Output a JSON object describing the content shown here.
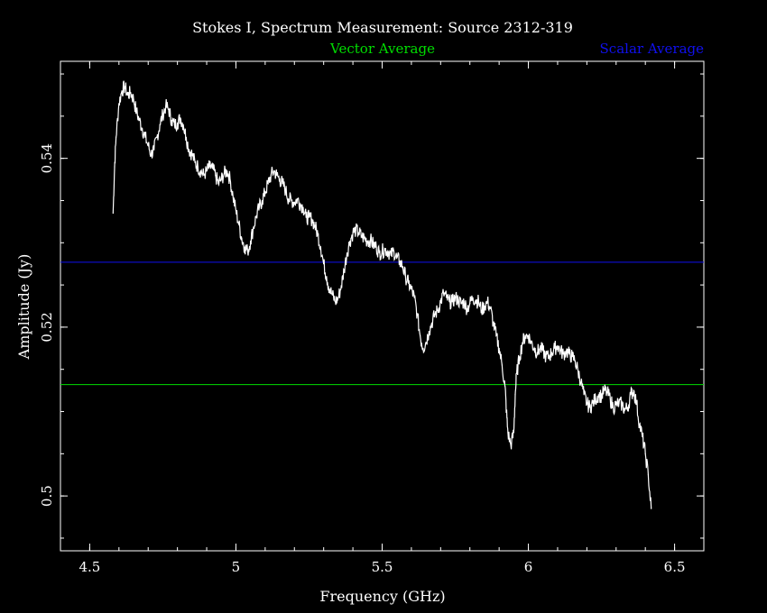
{
  "chart_data": {
    "type": "line",
    "title": "Stokes I, Spectrum Measurement: Source 2312-319",
    "xlabel": "Frequency (GHz)",
    "ylabel": "Amplitude (Jy)",
    "xlim": [
      4.4,
      6.6
    ],
    "ylim": [
      0.4935,
      0.5515
    ],
    "x_ticks": [
      4.5,
      5,
      5.5,
      6,
      6.5
    ],
    "x_tick_labels": [
      "4.5",
      "5",
      "5.5",
      "6",
      "6.5"
    ],
    "y_ticks": [
      0.5,
      0.52,
      0.54
    ],
    "y_tick_labels": [
      "0.5",
      "0.52",
      "0.54"
    ],
    "grid": false,
    "colors": {
      "background": "#000000",
      "axes": "#ffffff",
      "spectrum": "#ffffff",
      "vector": "#00dd00",
      "scalar": "#1010ee"
    },
    "series": [
      {
        "x": [
          4.58,
          4.585,
          4.59,
          4.6,
          4.61,
          4.62,
          4.63,
          4.64,
          4.65,
          4.66,
          4.67,
          4.68,
          4.69,
          4.7,
          4.71,
          4.72,
          4.73,
          4.74,
          4.75,
          4.76,
          4.77,
          4.78,
          4.79,
          4.8,
          4.81,
          4.82,
          4.83,
          4.84,
          4.85,
          4.86,
          4.87,
          4.88,
          4.89,
          4.9,
          4.91,
          4.92,
          4.93,
          4.94,
          4.95,
          4.96,
          4.97,
          4.98,
          4.99,
          5.0,
          5.01,
          5.02,
          5.03,
          5.04,
          5.05,
          5.06,
          5.07,
          5.08,
          5.09,
          5.1,
          5.11,
          5.12,
          5.13,
          5.14,
          5.15,
          5.16,
          5.17,
          5.18,
          5.19,
          5.2,
          5.21,
          5.22,
          5.23,
          5.24,
          5.25,
          5.26,
          5.27,
          5.28,
          5.29,
          5.3,
          5.31,
          5.32,
          5.33,
          5.34,
          5.35,
          5.36,
          5.37,
          5.38,
          5.39,
          5.4,
          5.41,
          5.42,
          5.43,
          5.44,
          5.45,
          5.46,
          5.47,
          5.48,
          5.49,
          5.5,
          5.51,
          5.52,
          5.53,
          5.54,
          5.55,
          5.56,
          5.57,
          5.58,
          5.59,
          5.6,
          5.61,
          5.62,
          5.63,
          5.64,
          5.65,
          5.66,
          5.67,
          5.68,
          5.69,
          5.7,
          5.71,
          5.72,
          5.73,
          5.74,
          5.75,
          5.76,
          5.77,
          5.78,
          5.79,
          5.8,
          5.81,
          5.82,
          5.83,
          5.84,
          5.85,
          5.86,
          5.87,
          5.88,
          5.89,
          5.9,
          5.91,
          5.92,
          5.925,
          5.93,
          5.94,
          5.95,
          5.955,
          5.96,
          5.97,
          5.98,
          5.99,
          6.0,
          6.01,
          6.02,
          6.03,
          6.04,
          6.05,
          6.06,
          6.07,
          6.08,
          6.09,
          6.1,
          6.11,
          6.12,
          6.13,
          6.14,
          6.15,
          6.16,
          6.17,
          6.18,
          6.19,
          6.2,
          6.21,
          6.22,
          6.23,
          6.24,
          6.25,
          6.26,
          6.27,
          6.28,
          6.29,
          6.3,
          6.31,
          6.32,
          6.33,
          6.34,
          6.35,
          6.36,
          6.37,
          6.38,
          6.39,
          6.4,
          6.41,
          6.42
        ],
        "y": [
          0.5335,
          0.539,
          0.5425,
          0.5465,
          0.548,
          0.5485,
          0.5475,
          0.5478,
          0.547,
          0.5455,
          0.5445,
          0.5435,
          0.5425,
          0.5415,
          0.5405,
          0.541,
          0.5425,
          0.544,
          0.5452,
          0.5462,
          0.5458,
          0.5445,
          0.544,
          0.5442,
          0.5448,
          0.544,
          0.5425,
          0.541,
          0.5405,
          0.5395,
          0.539,
          0.5385,
          0.538,
          0.5385,
          0.539,
          0.5388,
          0.538,
          0.537,
          0.5375,
          0.5382,
          0.5385,
          0.5375,
          0.5355,
          0.5338,
          0.5322,
          0.5305,
          0.5295,
          0.529,
          0.5302,
          0.5318,
          0.5332,
          0.5342,
          0.535,
          0.536,
          0.537,
          0.538,
          0.5385,
          0.538,
          0.5375,
          0.537,
          0.5362,
          0.5352,
          0.535,
          0.5348,
          0.5352,
          0.5346,
          0.5342,
          0.533,
          0.533,
          0.5328,
          0.532,
          0.531,
          0.5295,
          0.5275,
          0.526,
          0.5245,
          0.5238,
          0.523,
          0.5235,
          0.5248,
          0.5268,
          0.5288,
          0.5302,
          0.5312,
          0.5315,
          0.5312,
          0.5308,
          0.5305,
          0.5302,
          0.5303,
          0.5298,
          0.5295,
          0.5288,
          0.529,
          0.5292,
          0.529,
          0.5285,
          0.529,
          0.5282,
          0.5278,
          0.5272,
          0.526,
          0.5252,
          0.5245,
          0.5235,
          0.5215,
          0.519,
          0.5175,
          0.5182,
          0.5195,
          0.5205,
          0.5215,
          0.522,
          0.523,
          0.524,
          0.5235,
          0.523,
          0.523,
          0.5235,
          0.5232,
          0.5228,
          0.523,
          0.5222,
          0.5228,
          0.5235,
          0.5232,
          0.523,
          0.522,
          0.5225,
          0.523,
          0.5222,
          0.5205,
          0.519,
          0.5175,
          0.5155,
          0.513,
          0.51,
          0.5075,
          0.506,
          0.5075,
          0.512,
          0.5145,
          0.5165,
          0.5182,
          0.519,
          0.519,
          0.5182,
          0.5175,
          0.517,
          0.5175,
          0.5172,
          0.5165,
          0.5165,
          0.517,
          0.5175,
          0.5178,
          0.5172,
          0.5168,
          0.5172,
          0.5168,
          0.5165,
          0.516,
          0.5148,
          0.5135,
          0.512,
          0.511,
          0.5105,
          0.511,
          0.5115,
          0.512,
          0.5118,
          0.5125,
          0.5122,
          0.5115,
          0.5105,
          0.5108,
          0.511,
          0.5108,
          0.5102,
          0.5105,
          0.512,
          0.5125,
          0.511,
          0.5085,
          0.507,
          0.505,
          0.5025,
          0.4985
        ]
      }
    ],
    "reference_lines": [
      {
        "name": "Vector Average",
        "y": 0.5132,
        "color": "#00dd00"
      },
      {
        "name": "Scalar Average",
        "y": 0.5277,
        "color": "#1010ee"
      }
    ]
  }
}
